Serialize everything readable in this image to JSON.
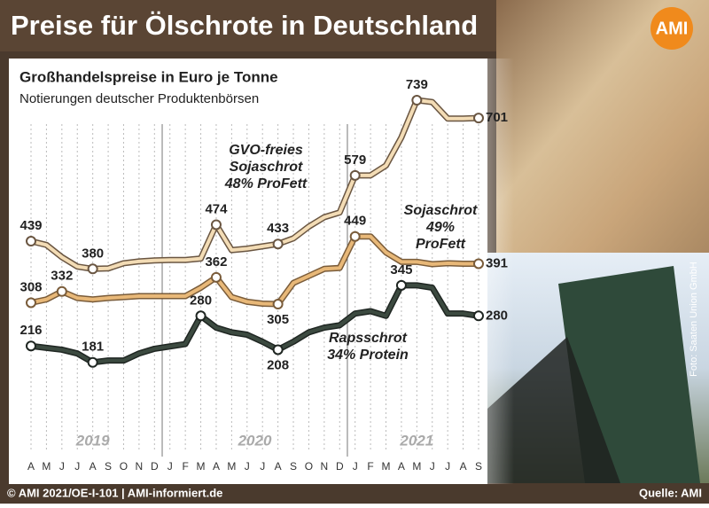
{
  "title": "Preise für Ölschrote in Deutschland",
  "logo": "AMI",
  "footer_left": "© AMI 2021/OE-I-101 | AMI-informiert.de",
  "footer_right": "Quelle: AMI",
  "photo_credit": "Foto: Saaten Union GmbH",
  "chart_data": {
    "type": "line",
    "subtitle": "Großhandelspreise in Euro je Tonne",
    "note": "Notierungen deutscher Produktenbörsen",
    "categories": [
      "A",
      "M",
      "J",
      "J",
      "A",
      "S",
      "O",
      "N",
      "D",
      "J",
      "F",
      "M",
      "A",
      "M",
      "J",
      "J",
      "A",
      "S",
      "O",
      "N",
      "D",
      "J",
      "F",
      "M",
      "A",
      "M",
      "J",
      "J",
      "A",
      "S"
    ],
    "years": [
      "2019",
      "2020",
      "2021"
    ],
    "grid": true,
    "series": [
      {
        "name": [
          "GVO-freies",
          "Sojaschrot",
          "48% ProFett"
        ],
        "color": "#f3dcb5",
        "values": [
          439,
          431,
          405,
          385,
          380,
          381,
          392,
          396,
          398,
          399,
          399,
          402,
          474,
          420,
          423,
          428,
          433,
          445,
          470,
          490,
          500,
          579,
          579,
          600,
          660,
          739,
          735,
          700,
          700,
          701
        ],
        "value_labels": [
          "439",
          null,
          null,
          null,
          "380",
          null,
          null,
          null,
          null,
          null,
          null,
          null,
          "474",
          null,
          null,
          null,
          "433",
          null,
          null,
          null,
          null,
          "579",
          null,
          null,
          null,
          "739",
          null,
          null,
          null,
          "701"
        ]
      },
      {
        "name": [
          "Sojaschrot",
          "49%",
          "ProFett"
        ],
        "color": "#e8b878",
        "values": [
          308,
          315,
          332,
          318,
          315,
          318,
          320,
          322,
          322,
          322,
          322,
          340,
          362,
          320,
          310,
          306,
          305,
          350,
          365,
          380,
          382,
          449,
          449,
          415,
          395,
          395,
          390,
          392,
          391,
          391
        ],
        "value_labels": [
          "308",
          null,
          "332",
          null,
          null,
          null,
          null,
          null,
          null,
          null,
          null,
          null,
          "362",
          null,
          null,
          null,
          "305",
          null,
          null,
          null,
          null,
          "449",
          null,
          null,
          null,
          null,
          null,
          null,
          null,
          "391"
        ]
      },
      {
        "name": [
          "Rapsschrot",
          "34% Protein"
        ],
        "color": "#3c4a40",
        "values": [
          216,
          212,
          208,
          200,
          181,
          185,
          185,
          200,
          210,
          215,
          220,
          280,
          255,
          245,
          240,
          225,
          208,
          225,
          245,
          255,
          260,
          285,
          290,
          280,
          345,
          345,
          340,
          285,
          285,
          280
        ],
        "value_labels": [
          "216",
          null,
          null,
          null,
          "181",
          null,
          null,
          null,
          null,
          null,
          null,
          "280",
          null,
          null,
          null,
          null,
          "208",
          null,
          null,
          null,
          null,
          null,
          null,
          null,
          "345",
          null,
          null,
          null,
          null,
          "280"
        ]
      }
    ]
  }
}
